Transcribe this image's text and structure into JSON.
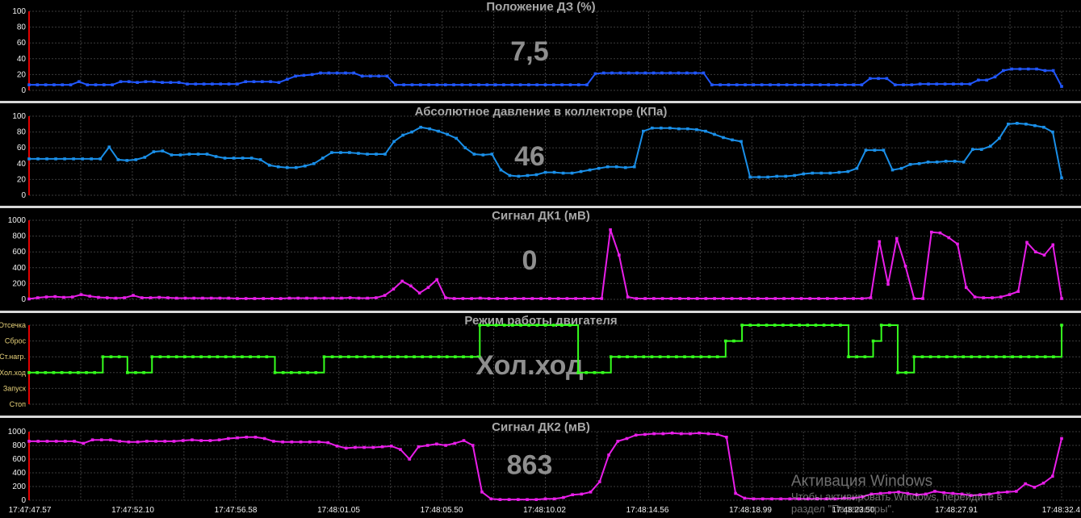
{
  "x_time_labels": [
    "17:47:47.57",
    "17:47:52.10",
    "17:47:56.58",
    "17:48:01.05",
    "17:48:05.50",
    "17:48:10.02",
    "17:48:14.56",
    "17:48:18.99",
    "17:48:23.50",
    "17:48:27.91",
    "17:48:32.4"
  ],
  "watermark": {
    "line1": "Активация Windows",
    "line2": "Чтобы активировать Windows, перейдите в",
    "line3": "раздел \"Параметры\"."
  },
  "colors": {
    "background": "#000000",
    "grid": "#3c3c3c",
    "separator": "#d8d8d8",
    "title": "#a8a8a8",
    "big_value": "#8e8e8e",
    "axis": "#e00000",
    "tick_text": "#e8d27a"
  },
  "chart_data": [
    {
      "type": "line",
      "title": "Положение ДЗ  (%)",
      "current_value": "7,5",
      "ylim": [
        0,
        100
      ],
      "yticks": [
        "0",
        "20",
        "40",
        "60",
        "80",
        "100"
      ],
      "color": "#2157ff",
      "step": false,
      "values": [
        7,
        7,
        7,
        7,
        7,
        7,
        11,
        7,
        7,
        7,
        7,
        11,
        11,
        10,
        11,
        11,
        10,
        10,
        10,
        8,
        8,
        8,
        8,
        8,
        8,
        8,
        11,
        11,
        11,
        11,
        10,
        14,
        18,
        19,
        20,
        22,
        22,
        22,
        22,
        22,
        18,
        18,
        18,
        18,
        7,
        7,
        7,
        7,
        7,
        7,
        7,
        7,
        7,
        7,
        7,
        7,
        7,
        7,
        7,
        7,
        7,
        7,
        7,
        7,
        7,
        7,
        7,
        7,
        21,
        22,
        22,
        22,
        22,
        22,
        22,
        22,
        22,
        22,
        22,
        22,
        22,
        22,
        7,
        7,
        7,
        7,
        7,
        7,
        7,
        7,
        7,
        7,
        7,
        7,
        7,
        7,
        7,
        7,
        7,
        7,
        7,
        15,
        15,
        15,
        7,
        7,
        7,
        8,
        8,
        8,
        8,
        8,
        8,
        8,
        13,
        13,
        17,
        25,
        27,
        27,
        27,
        27,
        25,
        25,
        5
      ]
    },
    {
      "type": "line",
      "title": "Абсолютное давление в коллекторе  (КПа)",
      "current_value": "46",
      "ylim": [
        0,
        100
      ],
      "yticks": [
        "0",
        "20",
        "40",
        "60",
        "80",
        "100"
      ],
      "color": "#1a8fe8",
      "step": false,
      "values": [
        46,
        46,
        46,
        46,
        46,
        46,
        46,
        46,
        46,
        61,
        45,
        44,
        45,
        48,
        55,
        56,
        51,
        51,
        52,
        52,
        52,
        49,
        47,
        47,
        47,
        47,
        45,
        38,
        36,
        35,
        35,
        37,
        40,
        47,
        54,
        54,
        54,
        53,
        52,
        52,
        52,
        68,
        76,
        80,
        86,
        84,
        81,
        77,
        72,
        60,
        52,
        51,
        52,
        32,
        25,
        24,
        25,
        26,
        29,
        29,
        28,
        28,
        30,
        32,
        34,
        36,
        36,
        35,
        36,
        81,
        85,
        85,
        85,
        84,
        84,
        83,
        81,
        77,
        73,
        70,
        68,
        23,
        23,
        23,
        24,
        24,
        25,
        27,
        28,
        28,
        28,
        29,
        30,
        34,
        57,
        57,
        57,
        32,
        34,
        39,
        40,
        42,
        42,
        43,
        43,
        42,
        58,
        58,
        62,
        72,
        90,
        91,
        90,
        88,
        86,
        80,
        22
      ]
    },
    {
      "type": "line",
      "title": "Сигнал ДК1  (мВ)",
      "current_value": "0",
      "ylim": [
        0,
        1000
      ],
      "yticks": [
        "0",
        "200",
        "400",
        "600",
        "800",
        "1000"
      ],
      "color": "#e81ee8",
      "step": false,
      "values": [
        5,
        20,
        30,
        35,
        25,
        30,
        60,
        40,
        25,
        20,
        15,
        20,
        50,
        20,
        20,
        25,
        20,
        15,
        15,
        15,
        15,
        15,
        15,
        15,
        10,
        10,
        10,
        10,
        10,
        10,
        15,
        15,
        15,
        15,
        15,
        15,
        15,
        20,
        15,
        15,
        20,
        50,
        130,
        230,
        170,
        80,
        150,
        250,
        20,
        10,
        10,
        10,
        15,
        10,
        10,
        10,
        10,
        10,
        10,
        10,
        10,
        10,
        10,
        10,
        10,
        10,
        10,
        880,
        560,
        30,
        10,
        10,
        10,
        10,
        10,
        10,
        10,
        10,
        10,
        10,
        10,
        10,
        10,
        10,
        10,
        10,
        10,
        10,
        10,
        10,
        10,
        10,
        10,
        10,
        10,
        10,
        10,
        20,
        730,
        190,
        770,
        420,
        10,
        10,
        850,
        840,
        780,
        700,
        150,
        30,
        20,
        20,
        30,
        60,
        100,
        720,
        600,
        560,
        690,
        10
      ]
    },
    {
      "type": "line",
      "title": "Режим работы двигателя",
      "current_value": "Хол.ход",
      "ylim": [
        0,
        5
      ],
      "yticks": [
        "Стоп",
        "Запуск",
        "Хол.ход",
        "Ст.нагр.",
        "Сброс",
        "Отсечка"
      ],
      "color": "#36ff1e",
      "step": true,
      "values": [
        2,
        2,
        2,
        2,
        2,
        2,
        2,
        2,
        2,
        3,
        3,
        3,
        2,
        2,
        2,
        3,
        3,
        3,
        3,
        3,
        3,
        3,
        3,
        3,
        3,
        3,
        3,
        3,
        3,
        3,
        2,
        2,
        2,
        2,
        2,
        2,
        3,
        3,
        3,
        3,
        3,
        3,
        3,
        3,
        3,
        3,
        3,
        3,
        3,
        3,
        3,
        3,
        3,
        3,
        3,
        5,
        5,
        5,
        5,
        5,
        5,
        5,
        5,
        5,
        5,
        5,
        5,
        2,
        2,
        2,
        2,
        3,
        3,
        3,
        3,
        3,
        3,
        3,
        3,
        3,
        3,
        3,
        3,
        3,
        3,
        4,
        4,
        5,
        5,
        5,
        5,
        5,
        5,
        5,
        5,
        5,
        5,
        5,
        5,
        5,
        3,
        3,
        3,
        4,
        5,
        5,
        2,
        2,
        3,
        3,
        3,
        3,
        3,
        3,
        3,
        3,
        3,
        3,
        3,
        3,
        3,
        3,
        3,
        3,
        3,
        3,
        5
      ]
    },
    {
      "type": "line",
      "title": "Сигнал ДК2  (мВ)",
      "current_value": "863",
      "ylim": [
        0,
        1000
      ],
      "yticks": [
        "0",
        "200",
        "400",
        "600",
        "800",
        "1000"
      ],
      "color": "#e81ee8",
      "step": false,
      "values": [
        860,
        860,
        860,
        860,
        860,
        860,
        830,
        880,
        880,
        880,
        860,
        850,
        850,
        860,
        860,
        860,
        860,
        870,
        880,
        870,
        870,
        880,
        900,
        910,
        920,
        920,
        900,
        860,
        850,
        850,
        850,
        850,
        850,
        840,
        790,
        760,
        770,
        770,
        770,
        780,
        790,
        740,
        600,
        780,
        800,
        820,
        800,
        830,
        870,
        800,
        120,
        20,
        10,
        10,
        10,
        10,
        10,
        20,
        20,
        40,
        80,
        90,
        120,
        270,
        660,
        860,
        900,
        950,
        960,
        970,
        970,
        980,
        970,
        970,
        980,
        970,
        960,
        920,
        100,
        30,
        20,
        20,
        20,
        20,
        20,
        20,
        20,
        20,
        20,
        20,
        30,
        30,
        50,
        90,
        100,
        110,
        120,
        100,
        80,
        90,
        130,
        110,
        100,
        90,
        70,
        80,
        90,
        110,
        120,
        130,
        240,
        190,
        250,
        350,
        900
      ]
    }
  ]
}
